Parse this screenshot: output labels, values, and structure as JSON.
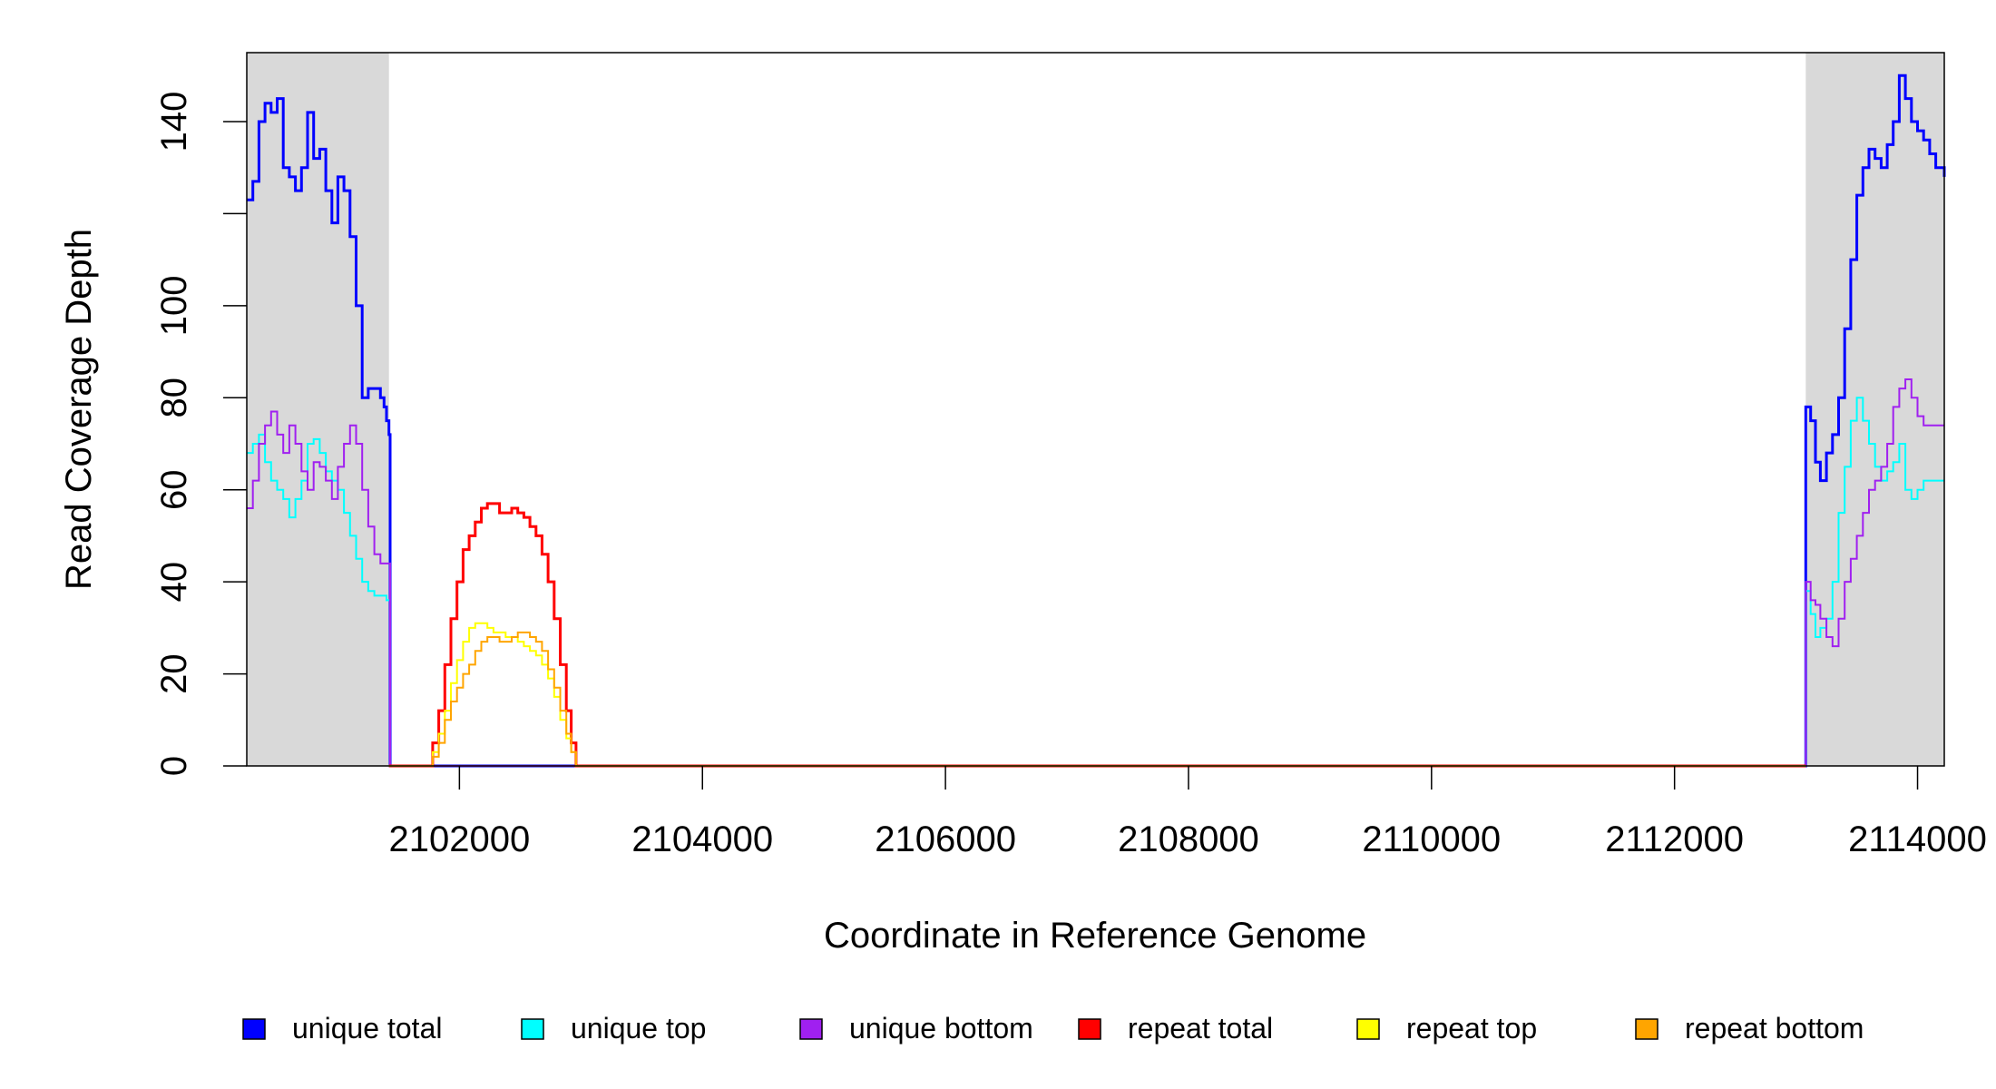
{
  "chart_data": {
    "type": "line",
    "title": "",
    "xlabel": "Coordinate in Reference Genome",
    "ylabel": "Read Coverage Depth",
    "xlim": [
      2100250,
      2114220
    ],
    "ylim": [
      0,
      155
    ],
    "x_ticks": [
      2102000,
      2104000,
      2106000,
      2108000,
      2110000,
      2112000,
      2114000
    ],
    "x_tick_labels": [
      "2102000",
      "2104000",
      "2106000",
      "2108000",
      "2110000",
      "2112000",
      "2114000"
    ],
    "y_ticks": [
      0,
      20,
      40,
      60,
      80,
      100,
      120,
      140
    ],
    "y_tick_labels": [
      "0",
      "20",
      "40",
      "60",
      "80",
      "100",
      "",
      "140"
    ],
    "grid": false,
    "legend_position": "bottom",
    "shaded_regions": [
      {
        "x0": 2100250,
        "x1": 2101420,
        "color": "#d9d9d9"
      },
      {
        "x0": 2113080,
        "x1": 2114220,
        "color": "#d9d9d9"
      }
    ],
    "legend": [
      {
        "name": "unique total",
        "color": "#0000ff"
      },
      {
        "name": "unique top",
        "color": "#00ffff"
      },
      {
        "name": "unique bottom",
        "color": "#a020f0"
      },
      {
        "name": "repeat total",
        "color": "#ff0000"
      },
      {
        "name": "repeat top",
        "color": "#ffff00"
      },
      {
        "name": "repeat bottom",
        "color": "#ffa500"
      }
    ],
    "series": [
      {
        "name": "unique total",
        "color": "#0000ff",
        "width": 3,
        "x": [
          2100250,
          2100300,
          2100350,
          2100400,
          2100450,
          2100500,
          2100550,
          2100600,
          2100650,
          2100700,
          2100750,
          2100800,
          2100850,
          2100900,
          2100950,
          2101000,
          2101050,
          2101100,
          2101150,
          2101200,
          2101250,
          2101300,
          2101350,
          2101380,
          2101400,
          2101420,
          2101430,
          2113070,
          2113080,
          2113120,
          2113160,
          2113200,
          2113250,
          2113300,
          2113350,
          2113400,
          2113450,
          2113500,
          2113550,
          2113600,
          2113650,
          2113700,
          2113750,
          2113800,
          2113850,
          2113900,
          2113950,
          2114000,
          2114050,
          2114100,
          2114150,
          2114220
        ],
        "y": [
          123,
          127,
          140,
          144,
          142,
          145,
          130,
          128,
          125,
          130,
          142,
          132,
          134,
          125,
          118,
          128,
          125,
          115,
          100,
          80,
          82,
          82,
          80,
          78,
          75,
          72,
          0,
          0,
          78,
          75,
          66,
          62,
          68,
          72,
          80,
          95,
          110,
          124,
          130,
          134,
          132,
          130,
          135,
          140,
          150,
          145,
          140,
          138,
          136,
          133,
          130,
          128
        ]
      },
      {
        "name": "unique top",
        "color": "#00ffff",
        "width": 2,
        "x": [
          2100250,
          2100300,
          2100350,
          2100400,
          2100450,
          2100500,
          2100550,
          2100600,
          2100650,
          2100700,
          2100750,
          2100800,
          2100850,
          2100900,
          2100950,
          2101000,
          2101050,
          2101100,
          2101150,
          2101200,
          2101250,
          2101300,
          2101350,
          2101400,
          2101420,
          2101430,
          2113070,
          2113080,
          2113120,
          2113160,
          2113200,
          2113250,
          2113300,
          2113350,
          2113400,
          2113450,
          2113500,
          2113550,
          2113600,
          2113650,
          2113700,
          2113750,
          2113800,
          2113850,
          2113900,
          2113950,
          2114000,
          2114050,
          2114100,
          2114150,
          2114220
        ],
        "y": [
          68,
          70,
          72,
          66,
          62,
          60,
          58,
          54,
          58,
          62,
          70,
          71,
          68,
          64,
          62,
          60,
          55,
          50,
          45,
          40,
          38,
          37,
          37,
          36,
          36,
          0,
          0,
          38,
          33,
          28,
          30,
          32,
          40,
          55,
          65,
          75,
          80,
          75,
          70,
          65,
          62,
          64,
          66,
          70,
          60,
          58,
          60,
          62,
          62,
          62,
          62
        ]
      },
      {
        "name": "unique bottom",
        "color": "#a020f0",
        "width": 2,
        "x": [
          2100250,
          2100300,
          2100350,
          2100400,
          2100450,
          2100500,
          2100550,
          2100600,
          2100650,
          2100700,
          2100750,
          2100800,
          2100850,
          2100900,
          2100950,
          2101000,
          2101050,
          2101100,
          2101150,
          2101200,
          2101250,
          2101300,
          2101350,
          2101400,
          2101420,
          2101430,
          2113070,
          2113080,
          2113120,
          2113160,
          2113200,
          2113250,
          2113300,
          2113350,
          2113400,
          2113450,
          2113500,
          2113550,
          2113600,
          2113650,
          2113700,
          2113750,
          2113800,
          2113850,
          2113900,
          2113950,
          2114000,
          2114050,
          2114100,
          2114150,
          2114220
        ],
        "y": [
          56,
          62,
          70,
          74,
          77,
          72,
          68,
          74,
          70,
          64,
          60,
          66,
          65,
          62,
          58,
          65,
          70,
          74,
          70,
          60,
          52,
          46,
          44,
          44,
          44,
          0,
          0,
          40,
          36,
          35,
          32,
          28,
          26,
          32,
          40,
          45,
          50,
          55,
          60,
          62,
          65,
          70,
          78,
          82,
          84,
          80,
          76,
          74,
          74,
          74,
          74
        ]
      },
      {
        "name": "repeat total",
        "color": "#ff0000",
        "width": 3,
        "x": [
          2101420,
          2101740,
          2101780,
          2101830,
          2101880,
          2101930,
          2101980,
          2102030,
          2102080,
          2102130,
          2102180,
          2102230,
          2102280,
          2102330,
          2102380,
          2102430,
          2102480,
          2102530,
          2102580,
          2102630,
          2102680,
          2102730,
          2102780,
          2102830,
          2102880,
          2102920,
          2102960,
          2113080
        ],
        "y": [
          0,
          0,
          5,
          12,
          22,
          32,
          40,
          47,
          50,
          53,
          56,
          57,
          57,
          55,
          55,
          56,
          55,
          54,
          52,
          50,
          46,
          40,
          32,
          22,
          12,
          5,
          0,
          0
        ]
      },
      {
        "name": "repeat top",
        "color": "#ffff00",
        "width": 2,
        "x": [
          2101420,
          2101740,
          2101780,
          2101830,
          2101880,
          2101930,
          2101980,
          2102030,
          2102080,
          2102130,
          2102180,
          2102230,
          2102280,
          2102330,
          2102380,
          2102430,
          2102480,
          2102530,
          2102580,
          2102630,
          2102680,
          2102730,
          2102780,
          2102830,
          2102880,
          2102920,
          2102960,
          2113080
        ],
        "y": [
          0,
          0,
          3,
          7,
          12,
          18,
          23,
          27,
          30,
          31,
          31,
          30,
          29,
          29,
          28,
          28,
          27,
          26,
          25,
          24,
          22,
          19,
          15,
          10,
          6,
          3,
          0,
          0
        ]
      },
      {
        "name": "repeat bottom",
        "color": "#ffa500",
        "width": 2,
        "x": [
          2101420,
          2101740,
          2101780,
          2101830,
          2101880,
          2101930,
          2101980,
          2102030,
          2102080,
          2102130,
          2102180,
          2102230,
          2102280,
          2102330,
          2102380,
          2102430,
          2102480,
          2102530,
          2102580,
          2102630,
          2102680,
          2102730,
          2102780,
          2102830,
          2102880,
          2102920,
          2102960,
          2113080
        ],
        "y": [
          0,
          0,
          2,
          5,
          10,
          14,
          17,
          20,
          22,
          25,
          27,
          28,
          28,
          27,
          27,
          28,
          29,
          29,
          28,
          27,
          25,
          21,
          17,
          12,
          7,
          3,
          0,
          0
        ]
      }
    ]
  }
}
